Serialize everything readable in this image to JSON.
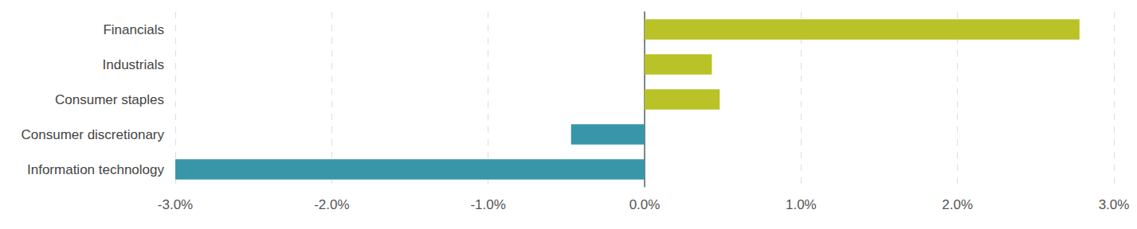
{
  "chart_data": {
    "type": "bar",
    "orientation": "horizontal",
    "categories": [
      "Financials",
      "Industrials",
      "Consumer staples",
      "Consumer discretionary",
      "Information technology"
    ],
    "values": [
      2.78,
      0.43,
      0.48,
      -0.47,
      -3.0
    ],
    "colors": [
      "#b9c226",
      "#b9c226",
      "#b9c226",
      "#3896a8",
      "#3896a8"
    ],
    "xlim": [
      -3,
      3
    ],
    "xticks": [
      {
        "value": -3,
        "label": "-3.0%"
      },
      {
        "value": -2,
        "label": "-2.0%"
      },
      {
        "value": -1,
        "label": "-1.0%"
      },
      {
        "value": 0,
        "label": "0.0%"
      },
      {
        "value": 1,
        "label": "1.0%"
      },
      {
        "value": 2,
        "label": "2.0%"
      },
      {
        "value": 3,
        "label": "3.0%"
      }
    ],
    "grid": true
  }
}
